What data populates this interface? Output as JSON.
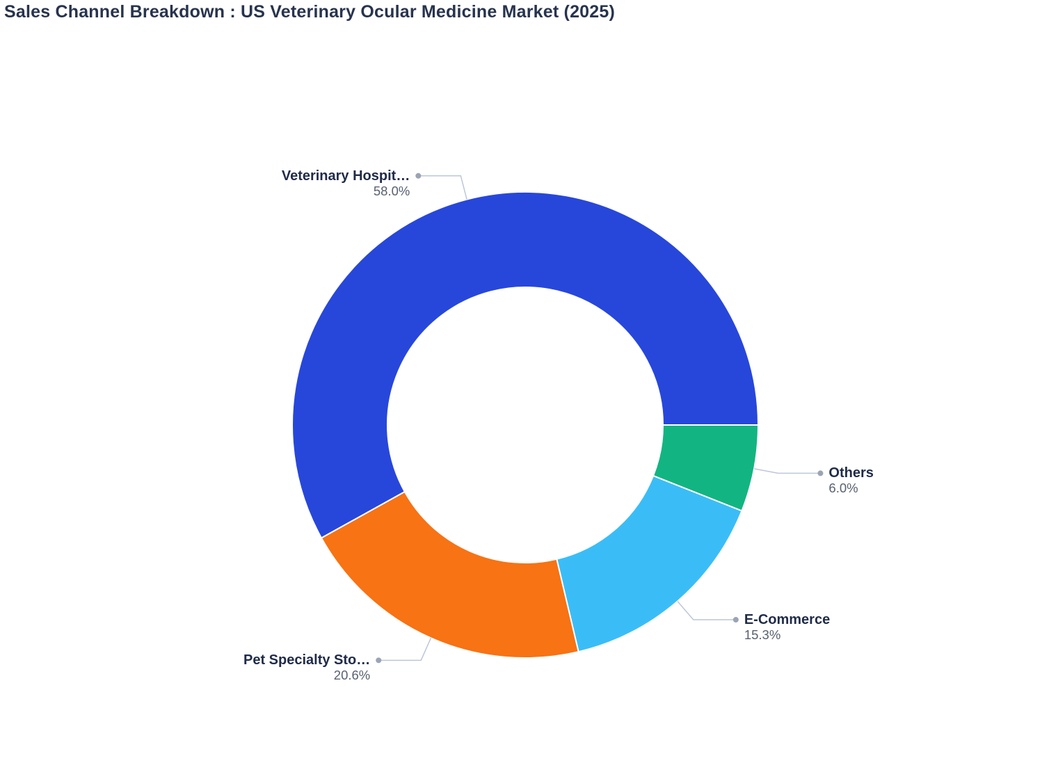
{
  "page": {
    "background": "#ffffff"
  },
  "chart_data": {
    "type": "pie",
    "subtype": "donut",
    "title": "Sales Channel Breakdown : US Veterinary Ocular Medicine Market (2025)",
    "legend": "none",
    "label_position": "outside",
    "series": [
      {
        "label": "Veterinary Hospit…",
        "pct_label": "58.0%",
        "value": 58.0,
        "color": "#2747DB"
      },
      {
        "label": "Pet Specialty Sto…",
        "pct_label": "20.6%",
        "value": 20.6,
        "color": "#F77314"
      },
      {
        "label": "E-Commerce",
        "pct_label": "15.3%",
        "value": 15.3,
        "color": "#3ABDF6"
      },
      {
        "label": "Others",
        "pct_label": "6.0%",
        "value": 6.0,
        "color": "#12B581"
      }
    ],
    "colors": {
      "title": "#27344E",
      "slice_border": "#ffffff",
      "label_text": "#1F2B47",
      "percent_text": "#596070",
      "leader_line": "#BCC6DA",
      "leader_dot": "#9AA4B5"
    }
  }
}
